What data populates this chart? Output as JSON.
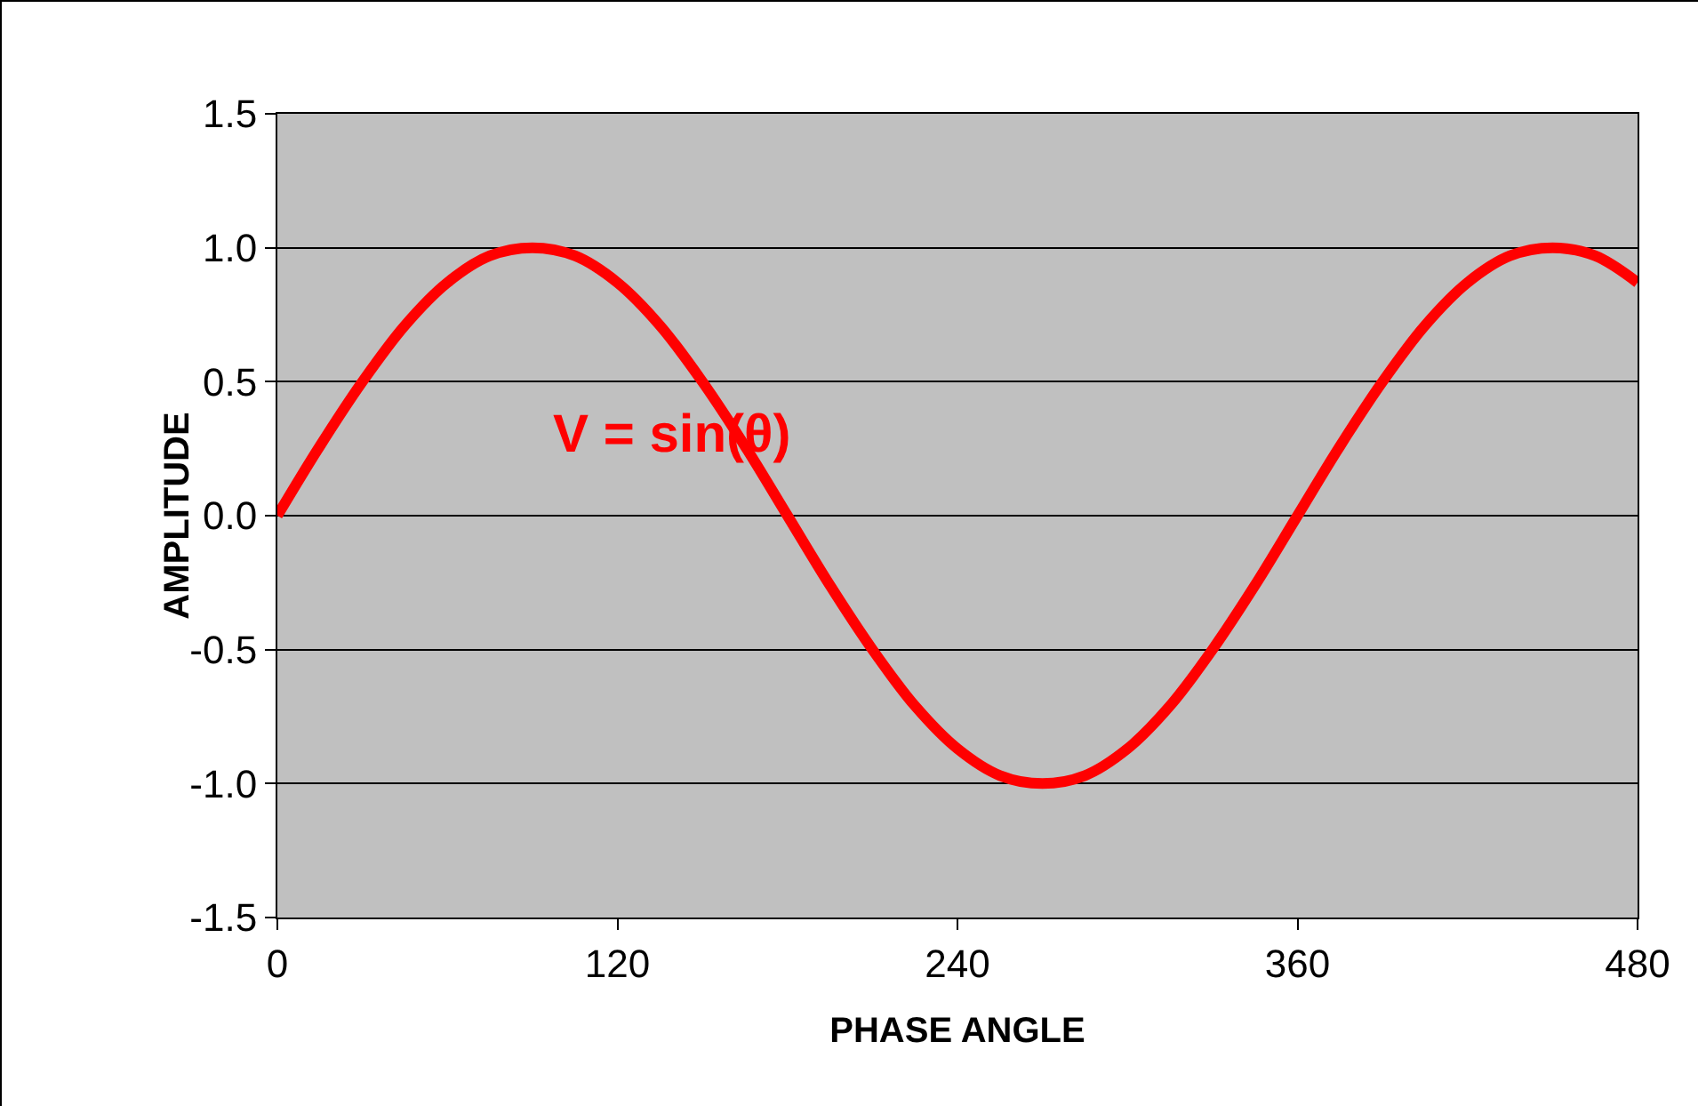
{
  "chart_data": {
    "type": "line",
    "xlabel": "PHASE ANGLE",
    "ylabel": "AMPLITUDE",
    "x": [
      0,
      15,
      30,
      45,
      60,
      75,
      90,
      105,
      120,
      135,
      150,
      165,
      180,
      195,
      210,
      225,
      240,
      255,
      270,
      285,
      300,
      315,
      330,
      345,
      360,
      375,
      390,
      405,
      420,
      435,
      450,
      465,
      480
    ],
    "series": [
      {
        "name": "V = sin(θ)",
        "color": "#ff0000",
        "values": [
          0,
          0.26,
          0.5,
          0.71,
          0.87,
          0.97,
          1,
          0.97,
          0.87,
          0.71,
          0.5,
          0.26,
          0,
          -0.26,
          -0.5,
          -0.71,
          -0.87,
          -0.97,
          -1,
          -0.97,
          -0.87,
          -0.71,
          -0.5,
          -0.26,
          0,
          0.26,
          0.5,
          0.71,
          0.87,
          0.97,
          1,
          0.97,
          0.87
        ]
      }
    ],
    "xlim": [
      0,
      480
    ],
    "xticks": [
      0,
      120,
      240,
      360,
      480
    ],
    "ylim": [
      -1.5,
      1.5
    ],
    "yticks": [
      {
        "value": -1.5,
        "label": "-1.5"
      },
      {
        "value": -1,
        "label": "-1.0"
      },
      {
        "value": -0.5,
        "label": "-0.5"
      },
      {
        "value": 0,
        "label": "0.0"
      },
      {
        "value": 0.5,
        "label": "0.5"
      },
      {
        "value": 1,
        "label": "1.0"
      },
      {
        "value": 1.5,
        "label": "1.5"
      }
    ],
    "grid": "y",
    "legend": false,
    "marker": "none",
    "line_style": "solid"
  }
}
